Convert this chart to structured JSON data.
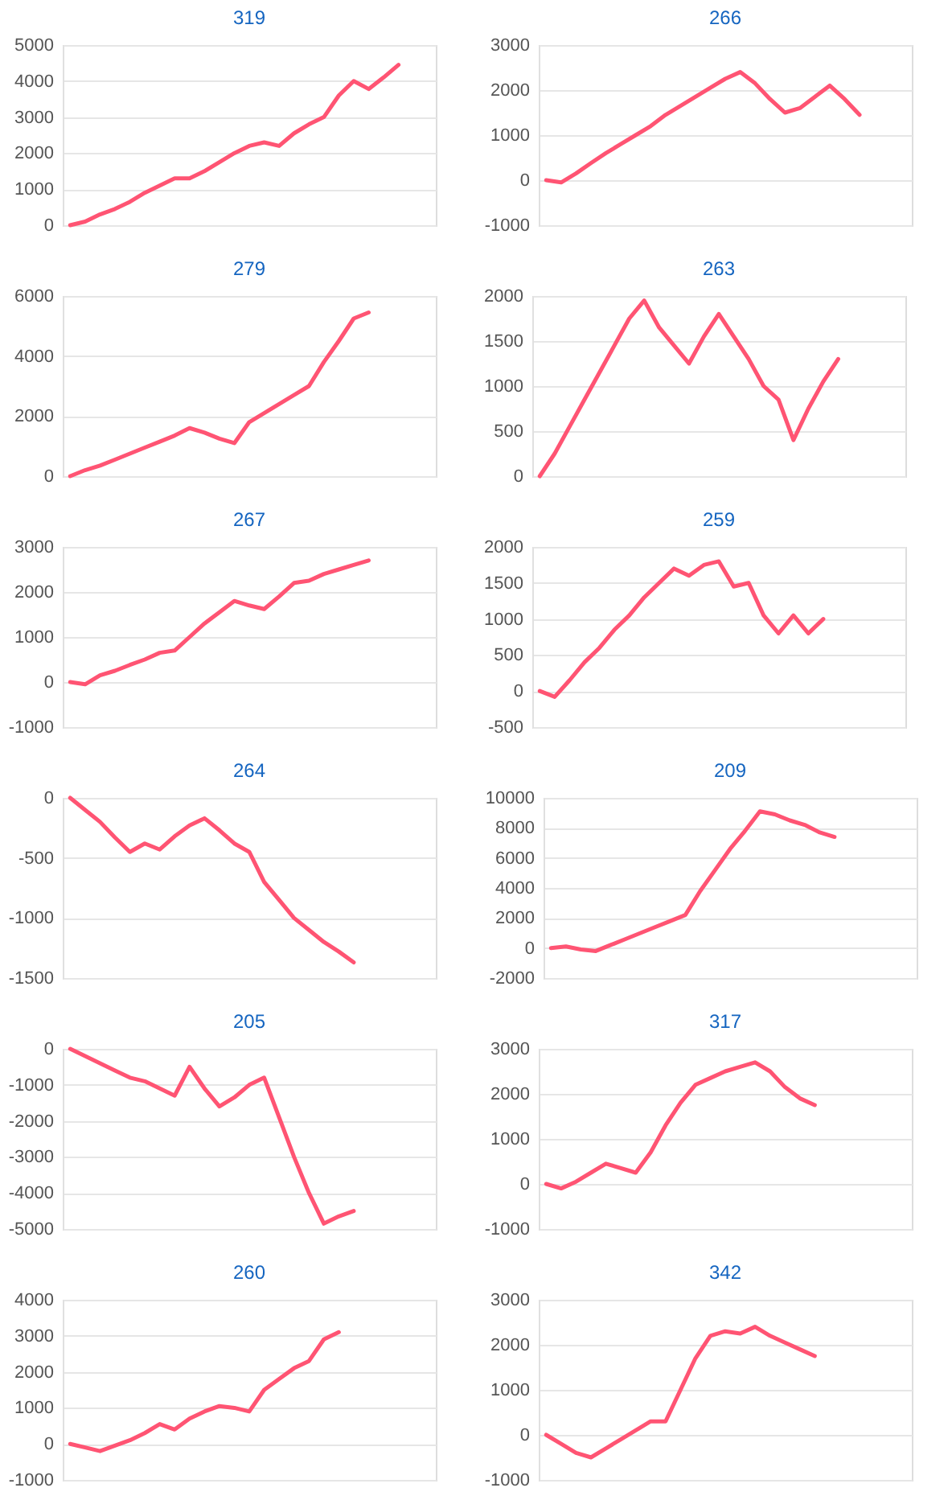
{
  "chart_data": [
    {
      "type": "line",
      "title": "319",
      "categories": [
        null,
        null,
        null,
        null,
        null,
        null,
        null,
        null,
        null,
        null,
        null,
        null,
        null,
        null,
        null,
        null,
        null,
        null,
        null,
        null,
        null,
        null,
        null,
        null,
        null
      ],
      "series": [
        {
          "color": "#ff5473",
          "values": [
            0,
            100,
            300,
            450,
            650,
            900,
            1100,
            1300,
            1300,
            1500,
            1750,
            2000,
            2200,
            2300,
            2200,
            2550,
            2800,
            3000,
            3600,
            4000,
            3780,
            4100,
            4450,
            null,
            null
          ]
        }
      ],
      "ylim": [
        0,
        5000
      ],
      "yticks": [
        0,
        1000,
        2000,
        3000,
        4000,
        5000
      ],
      "grid": "y",
      "tick_labels": "y"
    },
    {
      "type": "line",
      "title": "266",
      "categories": [
        null,
        null,
        null,
        null,
        null,
        null,
        null,
        null,
        null,
        null,
        null,
        null,
        null,
        null,
        null,
        null,
        null,
        null,
        null,
        null,
        null,
        null,
        null,
        null,
        null
      ],
      "series": [
        {
          "color": "#ff5473",
          "values": [
            0,
            -50,
            150,
            380,
            600,
            800,
            1000,
            1200,
            1450,
            1650,
            1850,
            2050,
            2250,
            2400,
            2150,
            1800,
            1500,
            1600,
            1850,
            2100,
            1800,
            1450,
            null,
            null,
            null
          ]
        }
      ],
      "ylim": [
        -1000,
        3000
      ],
      "yticks": [
        -1000,
        0,
        1000,
        2000,
        3000
      ],
      "grid": "y",
      "tick_labels": "y"
    },
    {
      "type": "line",
      "title": "279",
      "categories": [
        null,
        null,
        null,
        null,
        null,
        null,
        null,
        null,
        null,
        null,
        null,
        null,
        null,
        null,
        null,
        null,
        null,
        null,
        null,
        null,
        null,
        null,
        null,
        null,
        null
      ],
      "series": [
        {
          "color": "#ff5473",
          "values": [
            0,
            200,
            350,
            550,
            750,
            950,
            1150,
            1350,
            1600,
            1450,
            1250,
            1100,
            1800,
            2100,
            2400,
            2700,
            3000,
            3800,
            4500,
            5250,
            5450,
            null,
            null,
            null,
            null
          ]
        }
      ],
      "ylim": [
        0,
        6000
      ],
      "yticks": [
        0,
        2000,
        4000,
        6000
      ],
      "grid": "y",
      "tick_labels": "y"
    },
    {
      "type": "line",
      "title": "263",
      "categories": [
        null,
        null,
        null,
        null,
        null,
        null,
        null,
        null,
        null,
        null,
        null,
        null,
        null,
        null,
        null,
        null,
        null,
        null,
        null,
        null,
        null,
        null,
        null,
        null,
        null
      ],
      "series": [
        {
          "color": "#ff5473",
          "values": [
            0,
            250,
            550,
            850,
            1150,
            1450,
            1750,
            1950,
            1650,
            1450,
            1250,
            1550,
            1800,
            1550,
            1300,
            1000,
            850,
            400,
            750,
            1050,
            1300,
            null,
            null,
            null,
            null
          ]
        }
      ],
      "ylim": [
        0,
        2000
      ],
      "yticks": [
        0,
        500,
        1000,
        1500,
        2000
      ],
      "grid": "y",
      "tick_labels": "y"
    },
    {
      "type": "line",
      "title": "267",
      "categories": [
        null,
        null,
        null,
        null,
        null,
        null,
        null,
        null,
        null,
        null,
        null,
        null,
        null,
        null,
        null,
        null,
        null,
        null,
        null,
        null,
        null,
        null,
        null,
        null,
        null
      ],
      "series": [
        {
          "color": "#ff5473",
          "values": [
            0,
            -50,
            150,
            250,
            380,
            500,
            650,
            700,
            1000,
            1300,
            1550,
            1800,
            1700,
            1620,
            1900,
            2200,
            2250,
            2400,
            2500,
            2600,
            2700,
            null,
            null,
            null,
            null
          ]
        }
      ],
      "ylim": [
        -1000,
        3000
      ],
      "yticks": [
        -1000,
        0,
        1000,
        2000,
        3000
      ],
      "grid": "y",
      "tick_labels": "y"
    },
    {
      "type": "line",
      "title": "259",
      "categories": [
        null,
        null,
        null,
        null,
        null,
        null,
        null,
        null,
        null,
        null,
        null,
        null,
        null,
        null,
        null,
        null,
        null,
        null,
        null,
        null,
        null,
        null,
        null,
        null,
        null
      ],
      "series": [
        {
          "color": "#ff5473",
          "values": [
            0,
            -80,
            150,
            400,
            600,
            850,
            1050,
            1300,
            1500,
            1700,
            1600,
            1750,
            1800,
            1450,
            1500,
            1050,
            800,
            1050,
            800,
            1000,
            null,
            null,
            null,
            null,
            null
          ]
        }
      ],
      "ylim": [
        -500,
        2000
      ],
      "yticks": [
        -500,
        0,
        500,
        1000,
        1500,
        2000
      ],
      "grid": "y",
      "tick_labels": "y"
    },
    {
      "type": "line",
      "title": "264",
      "categories": [
        null,
        null,
        null,
        null,
        null,
        null,
        null,
        null,
        null,
        null,
        null,
        null,
        null,
        null,
        null,
        null,
        null,
        null,
        null,
        null,
        null,
        null,
        null,
        null,
        null
      ],
      "series": [
        {
          "color": "#ff5473",
          "values": [
            0,
            -100,
            -200,
            -330,
            -450,
            -380,
            -430,
            -320,
            -230,
            -170,
            -270,
            -380,
            -450,
            -700,
            -850,
            -1000,
            -1100,
            -1200,
            -1280,
            -1370,
            null,
            null,
            null,
            null,
            null
          ]
        }
      ],
      "ylim": [
        -1500,
        0
      ],
      "yticks": [
        -1500,
        -1000,
        -500,
        0
      ],
      "grid": "y",
      "tick_labels": "y"
    },
    {
      "type": "line",
      "title": "209",
      "categories": [
        null,
        null,
        null,
        null,
        null,
        null,
        null,
        null,
        null,
        null,
        null,
        null,
        null,
        null,
        null,
        null,
        null,
        null,
        null,
        null,
        null,
        null,
        null,
        null,
        null
      ],
      "series": [
        {
          "color": "#ff5473",
          "values": [
            0,
            100,
            -100,
            -200,
            200,
            600,
            1000,
            1400,
            1800,
            2200,
            3800,
            5200,
            6600,
            7800,
            9100,
            8900,
            8500,
            8200,
            7700,
            7400,
            null,
            null,
            null,
            null,
            null
          ]
        }
      ],
      "ylim": [
        -2000,
        10000
      ],
      "yticks": [
        -2000,
        0,
        2000,
        4000,
        6000,
        8000,
        10000
      ],
      "grid": "y",
      "tick_labels": "y"
    },
    {
      "type": "line",
      "title": "205",
      "categories": [
        null,
        null,
        null,
        null,
        null,
        null,
        null,
        null,
        null,
        null,
        null,
        null,
        null,
        null,
        null,
        null,
        null,
        null,
        null,
        null,
        null,
        null,
        null,
        null,
        null
      ],
      "series": [
        {
          "color": "#ff5473",
          "values": [
            0,
            -200,
            -400,
            -600,
            -800,
            -900,
            -1100,
            -1300,
            -500,
            -1100,
            -1600,
            -1350,
            -1000,
            -800,
            -1900,
            -3000,
            -4000,
            -4850,
            -4650,
            -4500,
            null,
            null,
            null,
            null,
            null
          ]
        }
      ],
      "ylim": [
        -5000,
        0
      ],
      "yticks": [
        -5000,
        -4000,
        -3000,
        -2000,
        -1000,
        0
      ],
      "grid": "y",
      "tick_labels": "y"
    },
    {
      "type": "line",
      "title": "317",
      "categories": [
        null,
        null,
        null,
        null,
        null,
        null,
        null,
        null,
        null,
        null,
        null,
        null,
        null,
        null,
        null,
        null,
        null,
        null,
        null,
        null,
        null,
        null,
        null,
        null,
        null
      ],
      "series": [
        {
          "color": "#ff5473",
          "values": [
            0,
            -100,
            50,
            250,
            450,
            350,
            250,
            700,
            1300,
            1800,
            2200,
            2350,
            2500,
            2600,
            2700,
            2500,
            2150,
            1900,
            1750,
            null,
            null,
            null,
            null,
            null,
            null
          ]
        }
      ],
      "ylim": [
        -1000,
        3000
      ],
      "yticks": [
        -1000,
        0,
        1000,
        2000,
        3000
      ],
      "grid": "y",
      "tick_labels": "y"
    },
    {
      "type": "line",
      "title": "260",
      "categories": [
        null,
        null,
        null,
        null,
        null,
        null,
        null,
        null,
        null,
        null,
        null,
        null,
        null,
        null,
        null,
        null,
        null,
        null,
        null,
        null,
        null,
        null,
        null,
        null,
        null
      ],
      "series": [
        {
          "color": "#ff5473",
          "values": [
            0,
            -100,
            -200,
            -50,
            100,
            300,
            550,
            400,
            700,
            900,
            1050,
            1000,
            900,
            1500,
            1800,
            2100,
            2300,
            2900,
            3100,
            null,
            null,
            null,
            null,
            null,
            null
          ]
        }
      ],
      "ylim": [
        -1000,
        4000
      ],
      "yticks": [
        -1000,
        0,
        1000,
        2000,
        3000,
        4000
      ],
      "grid": "y",
      "tick_labels": "y"
    },
    {
      "type": "line",
      "title": "342",
      "categories": [
        null,
        null,
        null,
        null,
        null,
        null,
        null,
        null,
        null,
        null,
        null,
        null,
        null,
        null,
        null,
        null,
        null,
        null,
        null,
        null,
        null,
        null,
        null,
        null,
        null
      ],
      "series": [
        {
          "color": "#ff5473",
          "values": [
            0,
            -200,
            -400,
            -500,
            -300,
            -100,
            100,
            300,
            300,
            1000,
            1700,
            2200,
            2300,
            2250,
            2400,
            2200,
            2050,
            1900,
            1750,
            null,
            null,
            null,
            null,
            null,
            null
          ]
        }
      ],
      "ylim": [
        -1000,
        3000
      ],
      "yticks": [
        -1000,
        0,
        1000,
        2000,
        3000
      ],
      "grid": "y",
      "tick_labels": "y"
    }
  ]
}
